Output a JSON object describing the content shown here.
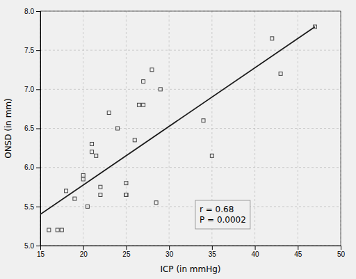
{
  "chart_data": {
    "type": "scatter",
    "xlabel": "ICP (in mmHg)",
    "ylabel": "ONSD (in mm)",
    "annotation": "r = 0.68\nP = 0.0002",
    "grid": true,
    "xlim": [
      15,
      50
    ],
    "ylim": [
      5.0,
      8.0
    ],
    "xticks": [
      15,
      20,
      25,
      30,
      35,
      40,
      45,
      50
    ],
    "yticks": [
      {
        "value": 5.0,
        "label": "5.0"
      },
      {
        "value": 5.5,
        "label": "5.5"
      },
      {
        "value": 6.0,
        "label": "6.0"
      },
      {
        "value": 6.5,
        "label": "6.5"
      },
      {
        "value": 7.0,
        "label": "7.0"
      },
      {
        "value": 7.5,
        "label": "7.5"
      },
      {
        "value": 8.0,
        "label": "8.0"
      }
    ],
    "series": [
      {
        "type": "scatter",
        "marker": "square",
        "color": "#444444",
        "x": [
          16,
          17,
          17.5,
          18,
          19,
          20,
          20,
          20.5,
          21,
          21,
          21.5,
          22,
          22,
          23,
          24,
          25,
          25,
          25,
          26,
          26.5,
          27,
          27,
          28,
          28.5,
          29,
          34,
          35,
          42,
          43,
          47
        ],
        "values": [
          5.2,
          5.2,
          5.2,
          5.7,
          5.6,
          5.85,
          5.9,
          5.5,
          6.2,
          6.3,
          6.15,
          5.75,
          5.65,
          6.7,
          6.5,
          5.8,
          5.65,
          5.65,
          6.35,
          6.8,
          7.1,
          6.8,
          7.25,
          5.55,
          7.0,
          6.6,
          6.15,
          7.65,
          7.2,
          7.8
        ]
      },
      {
        "type": "line",
        "color": "#1a1a1a",
        "x": [
          15,
          47
        ],
        "values": [
          5.4,
          7.8
        ]
      }
    ]
  }
}
